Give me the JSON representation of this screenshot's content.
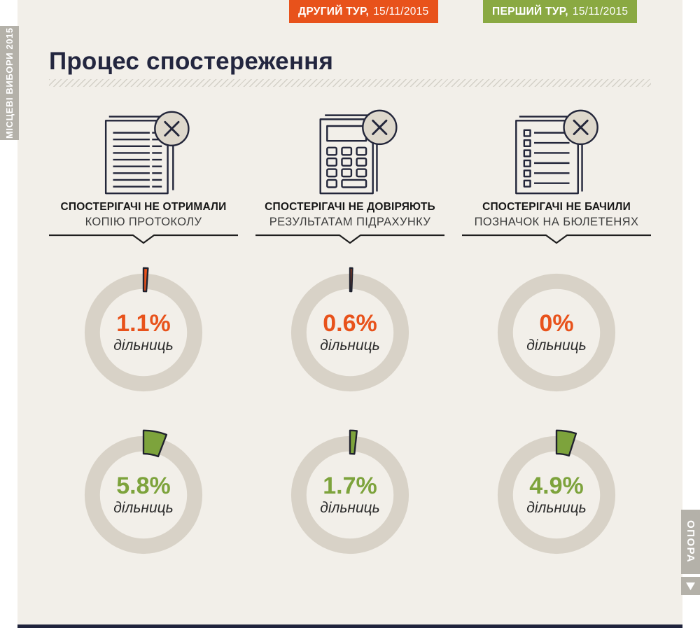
{
  "colors": {
    "panel_bg": "#f2efe9",
    "ring": "#d8d2c7",
    "outline": "#20222e",
    "orange": "#e8521b",
    "green": "#7da33c",
    "badge_green": "#8aa942",
    "navy_title": "#23263f",
    "tab_gray": "#b4b1a9",
    "footer_bar": "#20243c",
    "icon_circle_fill": "#ded8cc"
  },
  "side_tabs": {
    "left_label": "МІСЦЕВІ ВИБОРИ 2015",
    "right_label": "ОПОРА"
  },
  "header": {
    "title": "Процес спостереження",
    "badges": [
      {
        "round": "ДРУГИЙ ТУР,",
        "date": "15/11/2015"
      },
      {
        "round": "ПЕРШИЙ ТУР,",
        "date": "15/11/2015"
      }
    ]
  },
  "columns": [
    {
      "icon": "document-icon",
      "caption_line1": "СПОСТЕРІГАЧІ НЕ ОТРИМАЛИ",
      "caption_line2": "КОПІЮ ПРОТОКОЛУ",
      "top": {
        "value": "1.1%",
        "label": "дільниць"
      },
      "bottom": {
        "value": "5.8%",
        "label": "дільниць"
      }
    },
    {
      "icon": "calculator-icon",
      "caption_line1": "СПОСТЕРІГАЧІ НЕ ДОВІРЯЮТЬ",
      "caption_line2": "РЕЗУЛЬТАТАМ ПІДРАХУНКУ",
      "top": {
        "value": "0.6%",
        "label": "дільниць"
      },
      "bottom": {
        "value": "1.7%",
        "label": "дільниць"
      }
    },
    {
      "icon": "checklist-icon",
      "caption_line1": "СПОСТЕРІГАЧІ НЕ БАЧИЛИ",
      "caption_line2": "ПОЗНАЧОК НА БЮЛЕТЕНЯХ",
      "top": {
        "value": "0%",
        "label": "дільниць"
      },
      "bottom": {
        "value": "4.9%",
        "label": "дільниць"
      }
    }
  ],
  "chart_data": {
    "type": "pie",
    "subtype": "donut-small-multiples",
    "title": "Процес спостереження",
    "unit": "% дільниць",
    "legend_position": "top-right",
    "categories": [
      "СПОСТЕРІГАЧІ НЕ ОТРИМАЛИ КОПІЮ ПРОТОКОЛУ",
      "СПОСТЕРІГАЧІ НЕ ДОВІРЯЮТЬ РЕЗУЛЬТАТАМ ПІДРАХУНКУ",
      "СПОСТЕРІГАЧІ НЕ БАЧИЛИ ПОЗНАЧОК НА БЮЛЕТЕНЯХ"
    ],
    "series": [
      {
        "name": "ДРУГИЙ ТУР, 15/11/2015",
        "color": "#e8521b",
        "values": [
          1.1,
          0.6,
          0
        ]
      },
      {
        "name": "ПЕРШИЙ ТУР, 15/11/2015",
        "color": "#7da33c",
        "values": [
          5.8,
          1.7,
          4.9
        ]
      }
    ]
  }
}
